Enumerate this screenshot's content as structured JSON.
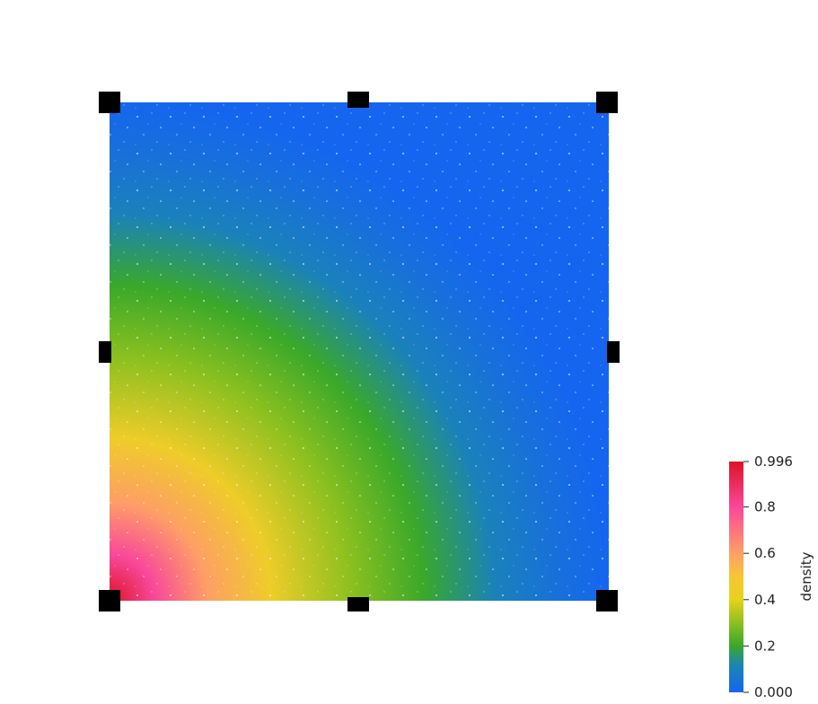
{
  "colorbar": {
    "title": "density",
    "min_label": "0.000",
    "max_label": "0.996",
    "ticks": [
      {
        "value": 0.996,
        "label": "0.996"
      },
      {
        "value": 0.8,
        "label": "0.8"
      },
      {
        "value": 0.6,
        "label": "0.6"
      },
      {
        "value": 0.4,
        "label": "0.4"
      },
      {
        "value": 0.2,
        "label": "0.2"
      },
      {
        "value": 0.0,
        "label": "0.000"
      }
    ],
    "range": [
      0.0,
      0.996
    ],
    "colormap": [
      {
        "value": 0.0,
        "color": "#1565f0"
      },
      {
        "value": 0.12,
        "color": "#1b87b0"
      },
      {
        "value": 0.2,
        "color": "#3aa82a"
      },
      {
        "value": 0.3,
        "color": "#8cc01f"
      },
      {
        "value": 0.4,
        "color": "#e6d21c"
      },
      {
        "value": 0.5,
        "color": "#f7c536"
      },
      {
        "value": 0.6,
        "color": "#fe9f65"
      },
      {
        "value": 0.8,
        "color": "#f9489a"
      },
      {
        "value": 0.996,
        "color": "#dc1426"
      }
    ]
  },
  "field": {
    "description_colors": {
      "background": "#ffffff",
      "marker": "#000000"
    },
    "markers": [
      "corner-top-left",
      "edge-top-middle",
      "corner-top-right",
      "edge-left-middle",
      "edge-right-middle",
      "corner-bottom-left",
      "edge-bottom-middle",
      "corner-bottom-right"
    ]
  }
}
